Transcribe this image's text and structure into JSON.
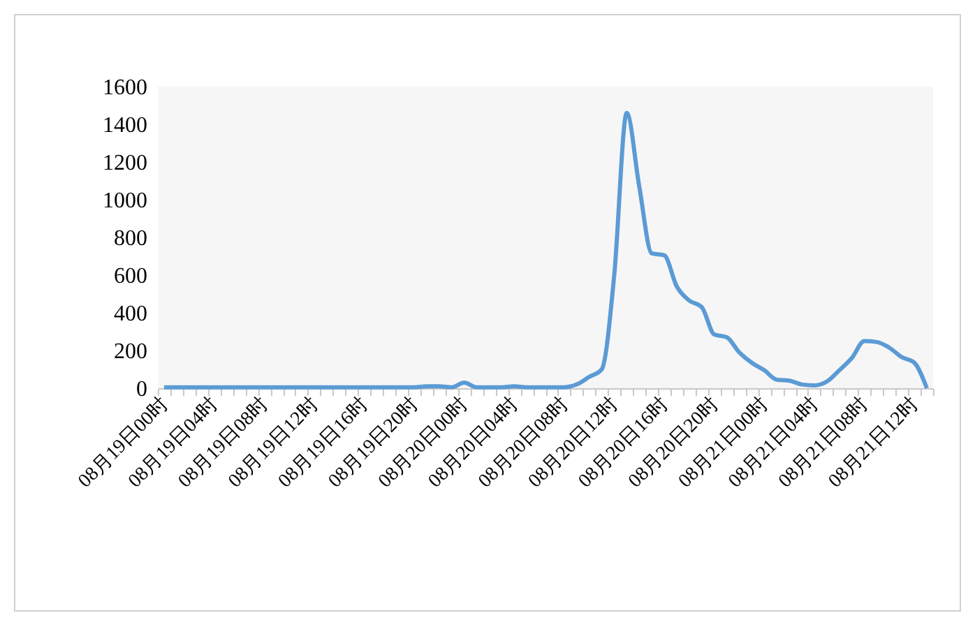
{
  "chart_data": {
    "type": "line",
    "categories": [
      "08月19日00时",
      null,
      null,
      null,
      "08月19日04时",
      null,
      null,
      null,
      "08月19日08时",
      null,
      null,
      null,
      "08月19日12时",
      null,
      null,
      null,
      "08月19日16时",
      null,
      null,
      null,
      "08月19日20时",
      null,
      null,
      null,
      "08月20日00时",
      null,
      null,
      null,
      "08月20日04时",
      null,
      null,
      null,
      "08月20日08时",
      null,
      null,
      null,
      "08月20日12时",
      null,
      null,
      null,
      "08月20日16时",
      null,
      null,
      null,
      "08月20日20时",
      null,
      null,
      null,
      "08月21日00时",
      null,
      null,
      null,
      "08月21日04时",
      null,
      null,
      null,
      "08月21日08时",
      null,
      null,
      null,
      "08月21日12时",
      null
    ],
    "series": [
      {
        "color": "#5b9bd5",
        "values": [
          5,
          5,
          5,
          5,
          5,
          5,
          5,
          5,
          5,
          5,
          5,
          5,
          5,
          5,
          5,
          5,
          5,
          5,
          5,
          5,
          5,
          10,
          10,
          5,
          30,
          5,
          5,
          5,
          10,
          5,
          5,
          5,
          5,
          20,
          60,
          100,
          600,
          1460,
          1070,
          715,
          705,
          540,
          465,
          430,
          285,
          270,
          190,
          135,
          95,
          45,
          40,
          20,
          15,
          35,
          95,
          160,
          250,
          245,
          215,
          165,
          135,
          0
        ]
      }
    ],
    "ylim": [
      0,
      1600
    ],
    "yticks": [
      0,
      200,
      400,
      600,
      800,
      1000,
      1200,
      1400,
      1600
    ],
    "grid": false,
    "marker": "none",
    "line_style": "solid"
  }
}
